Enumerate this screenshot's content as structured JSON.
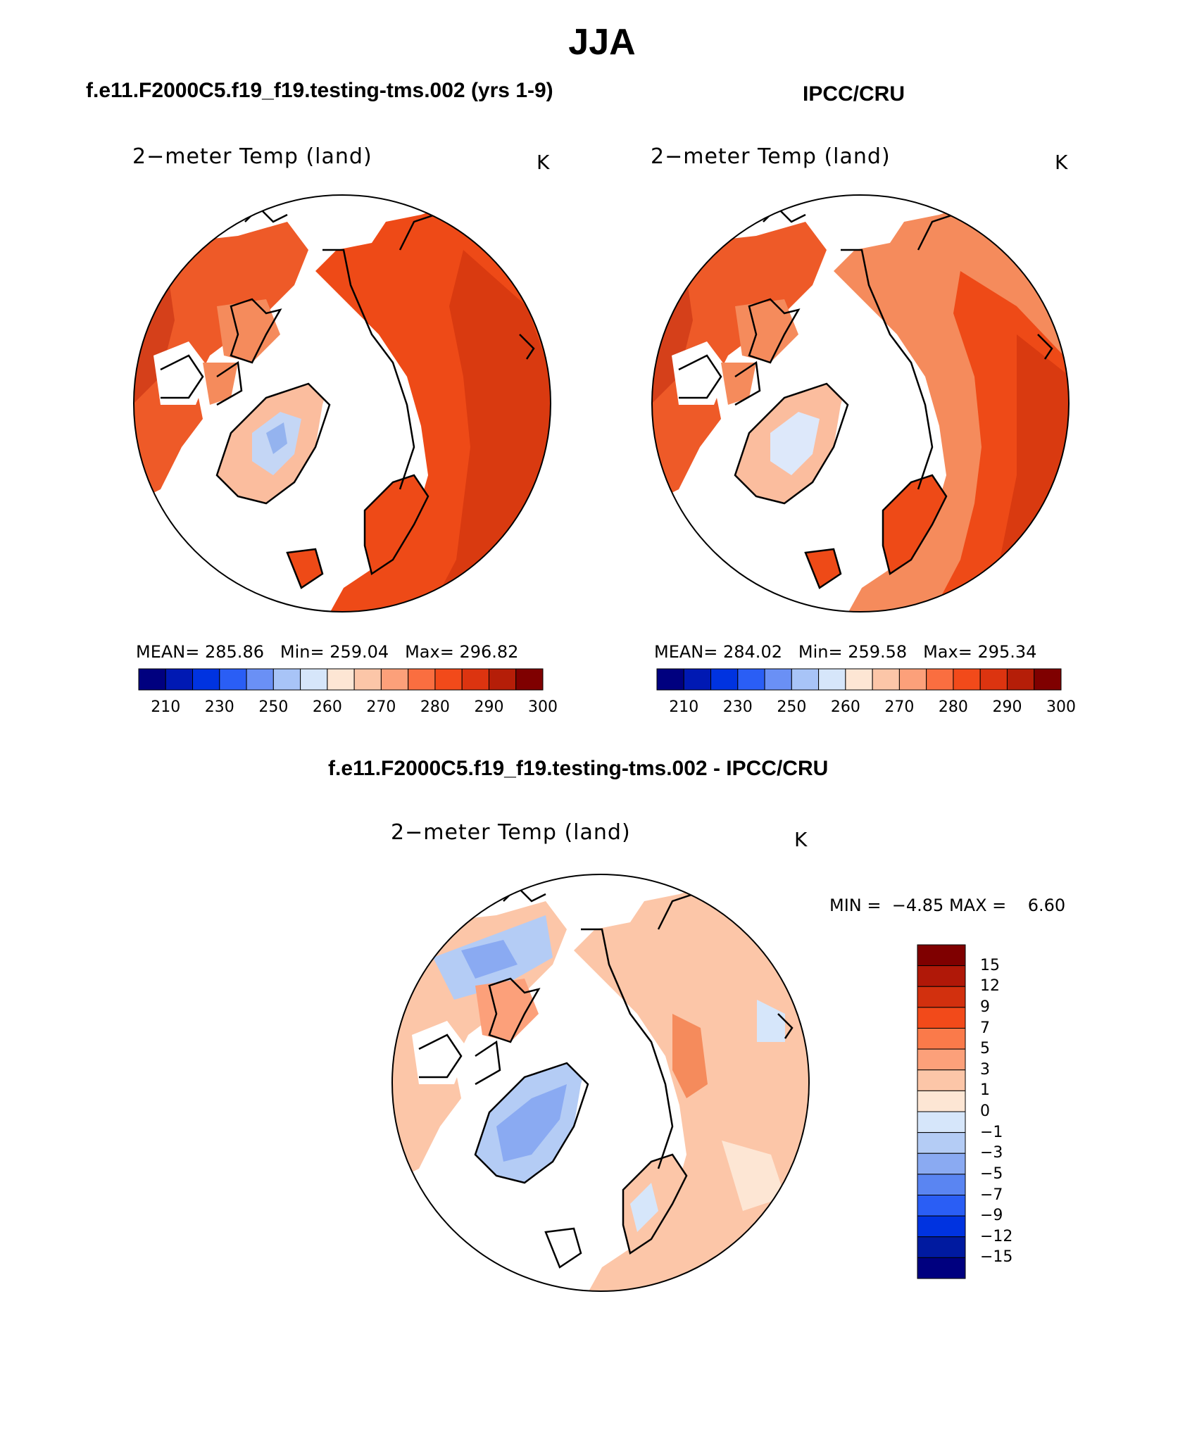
{
  "main_title": "JJA",
  "panels": [
    {
      "case_title": "f.e11.F2000C5.f19_f19.testing-tms.002 (yrs 1-9)",
      "field_title": "2−meter Temp (land)",
      "units": "K",
      "stats": {
        "mean_label": "MEAN=",
        "mean": "285.86",
        "min_label": "Min=",
        "min": "259.04",
        "max_label": "Max=",
        "max": "296.82"
      }
    },
    {
      "case_title": "IPCC/CRU",
      "field_title": "2−meter Temp (land)",
      "units": "K",
      "stats": {
        "mean_label": "MEAN=",
        "mean": "284.02",
        "min_label": "Min=",
        "min": "259.58",
        "max_label": "Max=",
        "max": "295.34"
      }
    },
    {
      "case_title": "f.e11.F2000C5.f19_f19.testing-tms.002 - IPCC/CRU",
      "field_title": "2−meter Temp (land)",
      "units": "K",
      "stats": {
        "min_label": "MIN =",
        "min": "−4.85",
        "max_label": "MAX =",
        "max": "6.60"
      }
    }
  ],
  "abs_colorbar": {
    "colors": [
      "#00007f",
      "#0019b3",
      "#0033e0",
      "#2a5ef5",
      "#6a90f5",
      "#a8c4f7",
      "#d6e6fa",
      "#fde6d4",
      "#fcc6a8",
      "#fca07a",
      "#fa6e40",
      "#f24a1a",
      "#dc3410",
      "#b51e08",
      "#7f0000"
    ],
    "labels": [
      "210",
      "230",
      "250",
      "260",
      "270",
      "280",
      "290",
      "300"
    ]
  },
  "diff_colorbar": {
    "colors": [
      "#00007f",
      "#001aa0",
      "#0033e0",
      "#2a5ef5",
      "#5a85f2",
      "#8aaaf2",
      "#b4ccf5",
      "#d6e6fa",
      "#fde6d4",
      "#fcc6a8",
      "#fca07a",
      "#fa7a4a",
      "#f24a1a",
      "#d2300e",
      "#b01808",
      "#7f0000"
    ],
    "labels": [
      "15",
      "12",
      "9",
      "7",
      "5",
      "3",
      "1",
      "0",
      "−1",
      "−3",
      "−5",
      "−7",
      "−9",
      "−12",
      "−15"
    ]
  }
}
